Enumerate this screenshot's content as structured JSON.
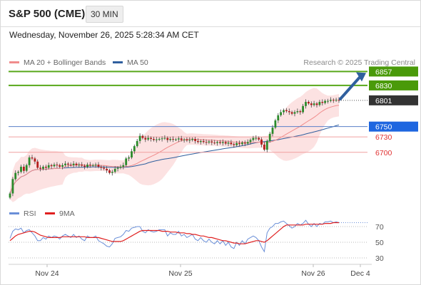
{
  "header": {
    "title": "S&P 500 (CME)",
    "interval": "30 MIN"
  },
  "datetime": "Wednesday, November 26, 2025 5:28:34 AM CET",
  "legend": [
    {
      "label": "MA 20 + Bollinger Bands",
      "color": "#f08c8c"
    },
    {
      "label": "MA 50",
      "color": "#2f5f9e"
    }
  ],
  "credit": "Research © 2025 Trading Central",
  "rsi_legend": [
    {
      "label": "RSI",
      "color": "#6a8fd8"
    },
    {
      "label": "9MA",
      "color": "#e02020"
    }
  ],
  "price_levels": [
    {
      "value": 6857,
      "label": "6857",
      "kind": "resistance",
      "bg": "#4a9a0a",
      "color": "#ffffff"
    },
    {
      "value": 6830,
      "label": "6830",
      "kind": "resistance",
      "bg": "#4a9a0a",
      "color": "#ffffff"
    },
    {
      "value": 6801,
      "label": "6801",
      "kind": "last",
      "bg": "#333333",
      "color": "#ffffff"
    },
    {
      "value": 6750,
      "label": "6750",
      "kind": "pivot",
      "bg": "#1e66e0",
      "color": "#ffffff"
    },
    {
      "value": 6730,
      "label": "6730",
      "kind": "support",
      "color": "#e03030"
    },
    {
      "value": 6700,
      "label": "6700",
      "kind": "support",
      "color": "#e03030"
    }
  ],
  "rsi_levels": [
    {
      "value": 70,
      "label": "70"
    },
    {
      "value": 50,
      "label": "50"
    },
    {
      "value": 30,
      "label": "30"
    }
  ],
  "x_ticks": [
    "Nov 24",
    "Nov 25",
    "Nov 26",
    "Dec 4"
  ],
  "chart_data": {
    "type": "candlestick",
    "interval": "30 MIN",
    "ylim": [
      6600,
      6870
    ],
    "x_ticks": [
      "Nov 24",
      "Nov 25",
      "Nov 26",
      "Dec 4"
    ],
    "closes": [
      6620,
      6648,
      6660,
      6662,
      6672,
      6664,
      6675,
      6690,
      6688,
      6682,
      6670,
      6668,
      6672,
      6670,
      6675,
      6673,
      6676,
      6675,
      6672,
      6675,
      6678,
      6676,
      6675,
      6678,
      6675,
      6676,
      6674,
      6672,
      6676,
      6675,
      6675,
      6676,
      6672,
      6670,
      6668,
      6665,
      6660,
      6662,
      6668,
      6670,
      6672,
      6675,
      6688,
      6690,
      6702,
      6712,
      6722,
      6732,
      6728,
      6725,
      6728,
      6726,
      6724,
      6725,
      6726,
      6727,
      6728,
      6724,
      6726,
      6725,
      6725,
      6727,
      6724,
      6725,
      6723,
      6724,
      6726,
      6722,
      6720,
      6722,
      6720,
      6719,
      6721,
      6719,
      6718,
      6720,
      6718,
      6720,
      6717,
      6719,
      6716,
      6714,
      6718,
      6716,
      6719,
      6717,
      6720,
      6724,
      6728,
      6728,
      6725,
      6715,
      6705,
      6722,
      6736,
      6748,
      6762,
      6772,
      6778,
      6782,
      6780,
      6778,
      6775,
      6778,
      6780,
      6778,
      6790,
      6798,
      6795,
      6792,
      6795,
      6792,
      6798,
      6796,
      6800,
      6800,
      6802,
      6801,
      6802,
      6801
    ],
    "ma20_last": 6787,
    "ma50_last": 6744,
    "bollinger_upper_last": 6830,
    "bollinger_lower_last": 6750,
    "forecast_arrow": {
      "from": 6801,
      "to": 6857
    },
    "rsi_ylim": [
      20,
      80
    ],
    "rsi": [
      55,
      64,
      67,
      66,
      68,
      62,
      65,
      66,
      62,
      58,
      52,
      52,
      56,
      54,
      58,
      56,
      58,
      57,
      54,
      58,
      60,
      58,
      56,
      60,
      56,
      58,
      54,
      52,
      58,
      56,
      56,
      58,
      52,
      50,
      48,
      45,
      44,
      48,
      55,
      56,
      57,
      60,
      65,
      64,
      68,
      69,
      70,
      70,
      64,
      62,
      66,
      64,
      63,
      64,
      66,
      66,
      66,
      58,
      62,
      60,
      60,
      64,
      58,
      60,
      56,
      58,
      60,
      54,
      52,
      56,
      52,
      50,
      54,
      50,
      48,
      52,
      48,
      52,
      46,
      50,
      44,
      42,
      50,
      46,
      52,
      48,
      54,
      56,
      58,
      56,
      52,
      44,
      38,
      62,
      68,
      70,
      74,
      74,
      76,
      77,
      74,
      71,
      68,
      70,
      74,
      72,
      74,
      78,
      73,
      70,
      74,
      70,
      74,
      73,
      76,
      76,
      77,
      75,
      76,
      75
    ],
    "rsi_9ma": [
      52,
      55,
      58,
      60,
      61,
      62,
      63,
      64,
      64,
      63,
      61,
      59,
      58,
      57,
      56,
      56,
      56,
      56,
      56,
      57,
      57,
      57,
      57,
      57,
      57,
      57,
      57,
      57,
      56,
      56,
      56,
      56,
      56,
      55,
      54,
      53,
      52,
      51,
      51,
      51,
      51,
      52,
      54,
      56,
      58,
      60,
      62,
      64,
      65,
      65,
      65,
      65,
      65,
      65,
      65,
      64,
      64,
      64,
      63,
      63,
      63,
      62,
      62,
      62,
      61,
      61,
      60,
      60,
      59,
      58,
      58,
      57,
      56,
      56,
      55,
      54,
      53,
      52,
      52,
      51,
      50,
      49,
      49,
      48,
      48,
      48,
      49,
      50,
      51,
      52,
      52,
      51,
      50,
      52,
      55,
      58,
      61,
      64,
      67,
      70,
      72,
      72,
      72,
      72,
      72,
      72,
      72,
      73,
      73,
      73,
      73,
      73,
      73,
      73,
      74,
      74,
      74,
      75,
      75,
      75
    ]
  }
}
